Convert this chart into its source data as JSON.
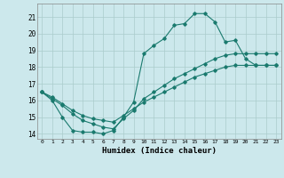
{
  "xlabel": "Humidex (Indice chaleur)",
  "bg_color": "#cce8ec",
  "grid_color": "#aacccc",
  "line_color": "#1a7a6e",
  "xlim": [
    -0.5,
    23.5
  ],
  "ylim": [
    13.7,
    21.8
  ],
  "yticks": [
    14,
    15,
    16,
    17,
    18,
    19,
    20,
    21
  ],
  "xticks": [
    0,
    1,
    2,
    3,
    4,
    5,
    6,
    7,
    8,
    9,
    10,
    11,
    12,
    13,
    14,
    15,
    16,
    17,
    18,
    19,
    20,
    21,
    22,
    23
  ],
  "curve1_x": [
    0,
    1,
    2,
    3,
    4,
    5,
    6,
    7,
    8,
    9,
    10,
    11,
    12,
    13,
    14,
    15,
    16,
    17,
    18,
    19,
    20,
    21,
    22,
    23
  ],
  "curve1_y": [
    16.5,
    16.0,
    15.0,
    14.2,
    14.1,
    14.1,
    14.0,
    14.2,
    15.0,
    15.9,
    18.8,
    19.3,
    19.7,
    20.5,
    20.6,
    21.2,
    21.2,
    20.7,
    19.5,
    19.6,
    18.5,
    18.1,
    18.1,
    18.1
  ],
  "curve2_x": [
    0,
    1,
    2,
    3,
    4,
    5,
    6,
    7,
    8,
    9,
    10,
    11,
    12,
    13,
    14,
    15,
    16,
    17,
    18,
    19,
    20,
    21,
    22,
    23
  ],
  "curve2_y": [
    16.5,
    16.2,
    15.8,
    15.4,
    15.1,
    14.9,
    14.8,
    14.7,
    15.1,
    15.5,
    15.9,
    16.2,
    16.5,
    16.8,
    17.1,
    17.4,
    17.6,
    17.8,
    18.0,
    18.1,
    18.1,
    18.1,
    18.1,
    18.1
  ],
  "curve3_x": [
    0,
    1,
    2,
    3,
    4,
    5,
    6,
    7,
    8,
    9,
    10,
    11,
    12,
    13,
    14,
    15,
    16,
    17,
    18,
    19,
    20,
    21,
    22,
    23
  ],
  "curve3_y": [
    16.5,
    16.1,
    15.7,
    15.2,
    14.8,
    14.6,
    14.4,
    14.3,
    14.9,
    15.4,
    16.1,
    16.5,
    16.9,
    17.3,
    17.6,
    17.9,
    18.2,
    18.5,
    18.7,
    18.8,
    18.8,
    18.8,
    18.8,
    18.8
  ]
}
